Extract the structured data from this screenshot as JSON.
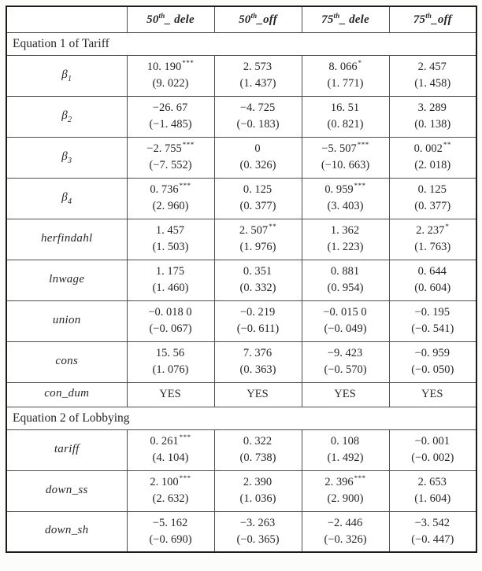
{
  "table": {
    "columns": [
      {
        "num": "",
        "sup": "",
        "suffix": ""
      },
      {
        "num": "50",
        "sup": "th",
        "suffix": "_ dele"
      },
      {
        "num": "50",
        "sup": "th",
        "suffix": "_off"
      },
      {
        "num": "75",
        "sup": "th",
        "suffix": "_ dele"
      },
      {
        "num": "75",
        "sup": "th",
        "suffix": "_off"
      }
    ],
    "rows": [
      {
        "type": "section",
        "title": "Equation 1 of Tariff"
      },
      {
        "type": "data",
        "label": {
          "base": "β",
          "sub": "1"
        },
        "cells": [
          {
            "coef": "10. 190",
            "stars": "***",
            "t": "(9. 022)"
          },
          {
            "coef": "2. 573",
            "stars": "",
            "t": "(1. 437)"
          },
          {
            "coef": "8. 066",
            "stars": "*",
            "t": "(1. 771)"
          },
          {
            "coef": "2. 457",
            "stars": "",
            "t": "(1. 458)"
          }
        ]
      },
      {
        "type": "data",
        "label": {
          "base": "β",
          "sub": "2"
        },
        "cells": [
          {
            "coef": "−26. 67",
            "stars": "",
            "t": "(−1. 485)"
          },
          {
            "coef": "−4. 725",
            "stars": "",
            "t": "(−0. 183)"
          },
          {
            "coef": "16. 51",
            "stars": "",
            "t": "(0. 821)"
          },
          {
            "coef": "3. 289",
            "stars": "",
            "t": "(0. 138)"
          }
        ]
      },
      {
        "type": "data",
        "label": {
          "base": "β",
          "sub": "3"
        },
        "cells": [
          {
            "coef": "−2. 755",
            "stars": "***",
            "t": "(−7. 552)"
          },
          {
            "coef": "0",
            "stars": "",
            "t": "(0. 326)"
          },
          {
            "coef": "−5. 507",
            "stars": "***",
            "t": "(−10. 663)"
          },
          {
            "coef": "0. 002",
            "stars": "**",
            "t": "(2. 018)"
          }
        ]
      },
      {
        "type": "data",
        "label": {
          "base": "β",
          "sub": "4"
        },
        "cells": [
          {
            "coef": "0. 736",
            "stars": "***",
            "t": "(2. 960)"
          },
          {
            "coef": "0. 125",
            "stars": "",
            "t": "(0. 377)"
          },
          {
            "coef": "0. 959",
            "stars": "***",
            "t": "(3. 403)"
          },
          {
            "coef": "0. 125",
            "stars": "",
            "t": "(0. 377)"
          }
        ]
      },
      {
        "type": "data",
        "label": {
          "base": "herfindahl",
          "sub": ""
        },
        "cells": [
          {
            "coef": "1. 457",
            "stars": "",
            "t": "(1. 503)"
          },
          {
            "coef": "2. 507",
            "stars": "**",
            "t": "(1. 976)"
          },
          {
            "coef": "1. 362",
            "stars": "",
            "t": "(1. 223)"
          },
          {
            "coef": "2. 237",
            "stars": "*",
            "t": "(1. 763)"
          }
        ]
      },
      {
        "type": "data",
        "label": {
          "base": "lnwage",
          "sub": ""
        },
        "cells": [
          {
            "coef": "1. 175",
            "stars": "",
            "t": "(1. 460)"
          },
          {
            "coef": "0. 351",
            "stars": "",
            "t": "(0. 332)"
          },
          {
            "coef": "0. 881",
            "stars": "",
            "t": "(0. 954)"
          },
          {
            "coef": "0. 644",
            "stars": "",
            "t": "(0. 604)"
          }
        ]
      },
      {
        "type": "data",
        "label": {
          "base": "union",
          "sub": ""
        },
        "cells": [
          {
            "coef": "−0. 018 0",
            "stars": "",
            "t": "(−0. 067)"
          },
          {
            "coef": "−0. 219",
            "stars": "",
            "t": "(−0. 611)"
          },
          {
            "coef": "−0. 015 0",
            "stars": "",
            "t": "(−0. 049)"
          },
          {
            "coef": "−0. 195",
            "stars": "",
            "t": "(−0. 541)"
          }
        ]
      },
      {
        "type": "data",
        "label": {
          "base": "cons",
          "sub": ""
        },
        "cells": [
          {
            "coef": "15. 56",
            "stars": "",
            "t": "(1. 076)"
          },
          {
            "coef": "7. 376",
            "stars": "",
            "t": "(0. 363)"
          },
          {
            "coef": "−9. 423",
            "stars": "",
            "t": "(−0. 570)"
          },
          {
            "coef": "−0. 959",
            "stars": "",
            "t": "(−0. 050)"
          }
        ]
      },
      {
        "type": "data",
        "single": true,
        "label": {
          "base": "con_dum",
          "sub": ""
        },
        "cells": [
          {
            "coef": "YES",
            "stars": "",
            "t": ""
          },
          {
            "coef": "YES",
            "stars": "",
            "t": ""
          },
          {
            "coef": "YES",
            "stars": "",
            "t": ""
          },
          {
            "coef": "YES",
            "stars": "",
            "t": ""
          }
        ]
      },
      {
        "type": "section",
        "title": "Equation 2 of Lobbying"
      },
      {
        "type": "data",
        "label": {
          "base": "tariff",
          "sub": ""
        },
        "cells": [
          {
            "coef": "0. 261",
            "stars": "***",
            "t": "(4. 104)"
          },
          {
            "coef": "0. 322",
            "stars": "",
            "t": "(0. 738)"
          },
          {
            "coef": "0. 108",
            "stars": "",
            "t": "(1. 492)"
          },
          {
            "coef": "−0. 001",
            "stars": "",
            "t": "(−0. 002)"
          }
        ]
      },
      {
        "type": "data",
        "label": {
          "base": "down_ss",
          "sub": ""
        },
        "cells": [
          {
            "coef": "2. 100",
            "stars": "***",
            "t": "(2. 632)"
          },
          {
            "coef": "2. 390",
            "stars": "",
            "t": "(1. 036)"
          },
          {
            "coef": "2. 396",
            "stars": "***",
            "t": "(2. 900)"
          },
          {
            "coef": "2. 653",
            "stars": "",
            "t": "(1. 604)"
          }
        ]
      },
      {
        "type": "data",
        "label": {
          "base": "down_sh",
          "sub": ""
        },
        "cells": [
          {
            "coef": "−5. 162",
            "stars": "",
            "t": "(−0. 690)"
          },
          {
            "coef": "−3. 263",
            "stars": "",
            "t": "(−0. 365)"
          },
          {
            "coef": "−2. 446",
            "stars": "",
            "t": "(−0. 326)"
          },
          {
            "coef": "−3. 542",
            "stars": "",
            "t": "(−0. 447)"
          }
        ]
      }
    ]
  }
}
